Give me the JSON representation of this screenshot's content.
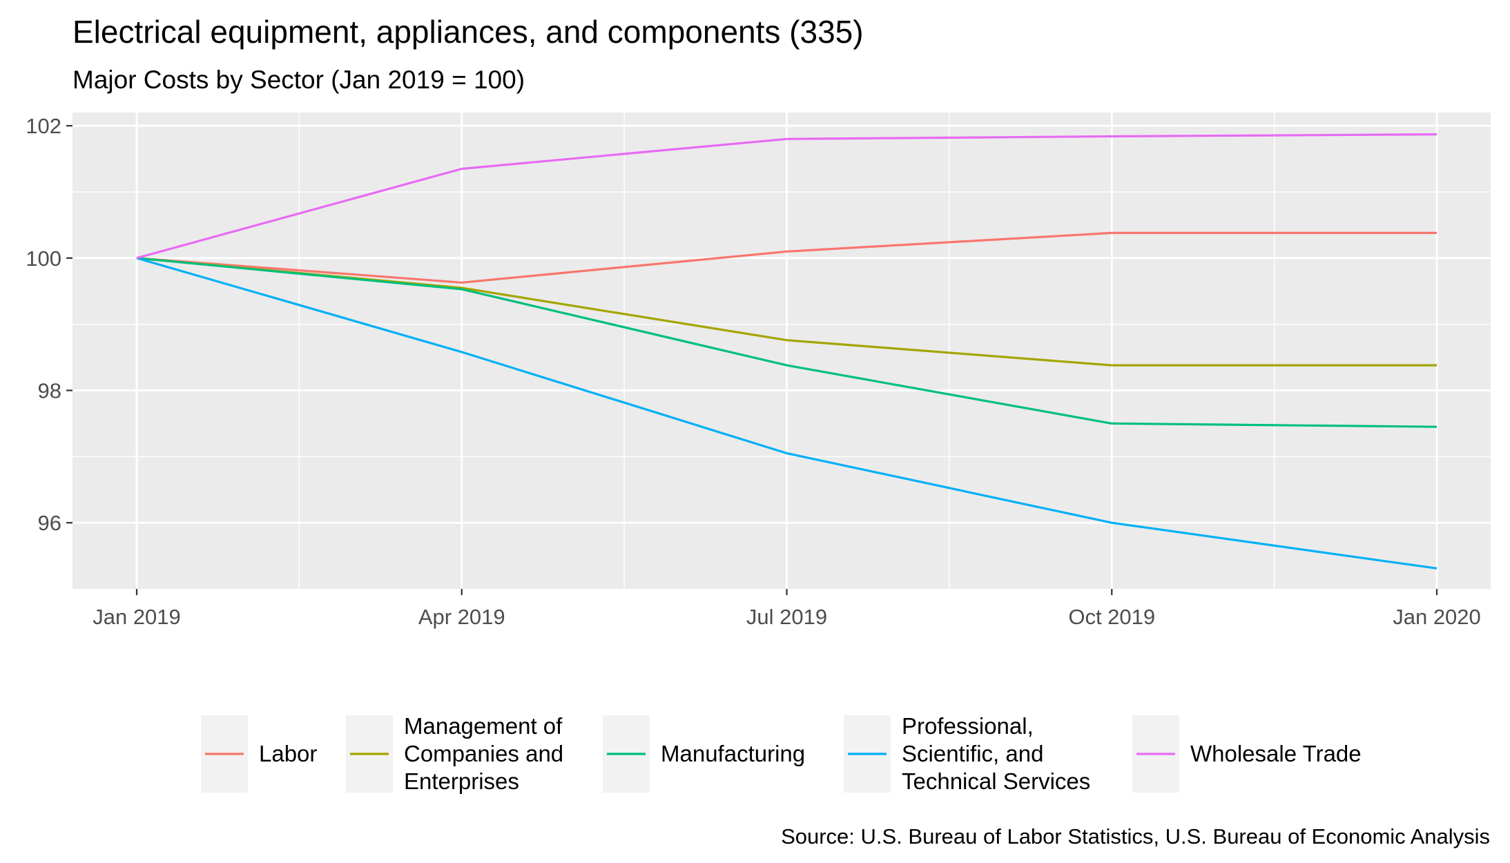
{
  "chart_data": {
    "type": "line",
    "title": "Electrical equipment, appliances, and components (335)",
    "subtitle": "Major Costs by Sector (Jan 2019 = 100)",
    "caption": "Source: U.S. Bureau of Labor Statistics, U.S. Bureau of Economic Analysis",
    "xlabel": "",
    "ylabel": "",
    "x": [
      "Jan 2019",
      "Apr 2019",
      "Jul 2019",
      "Oct 2019",
      "Jan 2020"
    ],
    "x_tick_labels": [
      "Jan 2019",
      "Apr 2019",
      "Jul 2019",
      "Oct 2019",
      "Jan 2020"
    ],
    "y_ticks": [
      96,
      98,
      100,
      102
    ],
    "ylim": [
      95.0,
      102.2
    ],
    "grid": true,
    "legend_position": "bottom",
    "series": [
      {
        "name": "Labor",
        "color": "#F8766D",
        "values": [
          100,
          99.63,
          100.1,
          100.38,
          100.38
        ]
      },
      {
        "name": "Management of Companies and Enterprises",
        "legend_lines": [
          "Management of",
          "Companies and",
          "Enterprises"
        ],
        "color": "#A3A500",
        "values": [
          100,
          99.55,
          98.76,
          98.38,
          98.38
        ]
      },
      {
        "name": "Manufacturing",
        "color": "#00BF7D",
        "values": [
          100,
          99.53,
          98.38,
          97.5,
          97.45
        ]
      },
      {
        "name": "Professional, Scientific, and Technical Services",
        "legend_lines": [
          "Professional,",
          "Scientific, and",
          "Technical Services"
        ],
        "color": "#00B0F6",
        "values": [
          100,
          98.58,
          97.05,
          96.0,
          95.31
        ]
      },
      {
        "name": "Wholesale Trade",
        "color": "#E76BF3",
        "values": [
          100,
          101.35,
          101.8,
          101.84,
          101.87
        ]
      }
    ]
  }
}
